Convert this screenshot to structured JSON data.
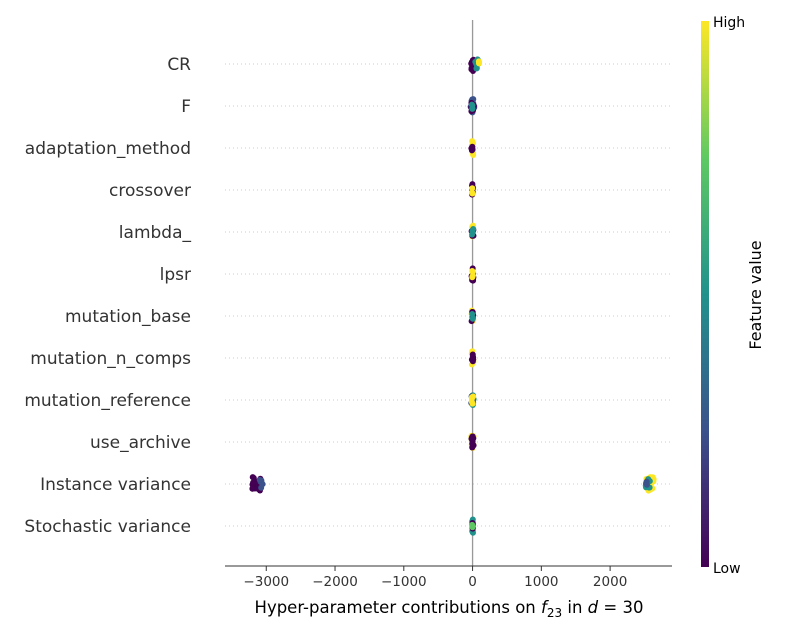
{
  "chart_data": {
    "type": "scatter",
    "subtype": "shap-beeswarm",
    "xlabel_prefix": "Hyper-parameter contributions on ",
    "xlabel_math": "f",
    "xlabel_sub": "23",
    "xlabel_mid": " in ",
    "xlabel_math2": "d",
    "xlabel_suffix": " = 30",
    "xlim": [
      -3600,
      2900
    ],
    "xticks": [
      -3000,
      -2000,
      -1000,
      0,
      1000,
      2000
    ],
    "xtick_labels": [
      "−3000",
      "−2000",
      "−1000",
      "0",
      "1000",
      "2000"
    ],
    "grid": "dotted horizontal row guides",
    "colorbar": {
      "label": "Feature value",
      "high_label": "High",
      "low_label": "Low",
      "colormap": [
        "#440154",
        "#3b528b",
        "#21918c",
        "#5ec962",
        "#fde725"
      ]
    },
    "features": [
      {
        "name": "CR",
        "groups": [
          {
            "x": 0,
            "spread": 25,
            "color": "#440154",
            "n": 14
          },
          {
            "x": 60,
            "spread": 30,
            "color": "#21918c",
            "n": 10
          },
          {
            "x": 90,
            "spread": 10,
            "color": "#fde725",
            "n": 3
          }
        ]
      },
      {
        "name": "F",
        "groups": [
          {
            "x": 0,
            "spread": 30,
            "color": "#3b528b",
            "n": 16
          },
          {
            "x": 0,
            "spread": 20,
            "color": "#440154",
            "n": 10
          },
          {
            "x": 0,
            "spread": 10,
            "color": "#21918c",
            "n": 5
          }
        ]
      },
      {
        "name": "adaptation_method",
        "groups": [
          {
            "x": 0,
            "spread": 15,
            "color": "#fde725",
            "n": 14
          },
          {
            "x": -10,
            "spread": 10,
            "color": "#440154",
            "n": 4
          }
        ]
      },
      {
        "name": "crossover",
        "groups": [
          {
            "x": 0,
            "spread": 8,
            "color": "#440154",
            "n": 10
          },
          {
            "x": 0,
            "spread": 8,
            "color": "#fde725",
            "n": 4
          }
        ]
      },
      {
        "name": "lambda_",
        "groups": [
          {
            "x": 0,
            "spread": 12,
            "color": "#fde725",
            "n": 12
          },
          {
            "x": 0,
            "spread": 15,
            "color": "#440154",
            "n": 6
          },
          {
            "x": 0,
            "spread": 10,
            "color": "#21918c",
            "n": 3
          }
        ]
      },
      {
        "name": "lpsr",
        "groups": [
          {
            "x": 0,
            "spread": 15,
            "color": "#440154",
            "n": 12
          },
          {
            "x": 0,
            "spread": 8,
            "color": "#fde725",
            "n": 5
          }
        ]
      },
      {
        "name": "mutation_base",
        "groups": [
          {
            "x": 0,
            "spread": 15,
            "color": "#fde725",
            "n": 10
          },
          {
            "x": 0,
            "spread": 15,
            "color": "#440154",
            "n": 8
          },
          {
            "x": 0,
            "spread": 10,
            "color": "#21918c",
            "n": 3
          }
        ]
      },
      {
        "name": "mutation_n_comps",
        "groups": [
          {
            "x": 0,
            "spread": 12,
            "color": "#fde725",
            "n": 12
          },
          {
            "x": 0,
            "spread": 10,
            "color": "#440154",
            "n": 7
          }
        ]
      },
      {
        "name": "mutation_reference",
        "groups": [
          {
            "x": 0,
            "spread": 15,
            "color": "#21918c",
            "n": 8
          },
          {
            "x": 0,
            "spread": 20,
            "color": "#3b528b",
            "n": 6
          },
          {
            "x": 0,
            "spread": 12,
            "color": "#fde725",
            "n": 6
          }
        ]
      },
      {
        "name": "use_archive",
        "groups": [
          {
            "x": 0,
            "spread": 18,
            "color": "#fde725",
            "n": 12
          },
          {
            "x": 0,
            "spread": 18,
            "color": "#440154",
            "n": 10
          }
        ]
      },
      {
        "name": "Instance variance",
        "groups": [
          {
            "x": -3150,
            "spread": 70,
            "color": "#440154",
            "n": 24
          },
          {
            "x": -3090,
            "spread": 40,
            "color": "#3b528b",
            "n": 6
          },
          {
            "x": 2580,
            "spread": 60,
            "color": "#fde725",
            "n": 22
          },
          {
            "x": 2550,
            "spread": 40,
            "color": "#21918c",
            "n": 8
          },
          {
            "x": 2520,
            "spread": 20,
            "color": "#3b528b",
            "n": 3
          }
        ]
      },
      {
        "name": "Stochastic variance",
        "groups": [
          {
            "x": 0,
            "spread": 8,
            "color": "#21918c",
            "n": 12
          },
          {
            "x": 0,
            "spread": 6,
            "color": "#440154",
            "n": 5
          },
          {
            "x": 0,
            "spread": 6,
            "color": "#5ec962",
            "n": 2
          }
        ]
      }
    ]
  }
}
